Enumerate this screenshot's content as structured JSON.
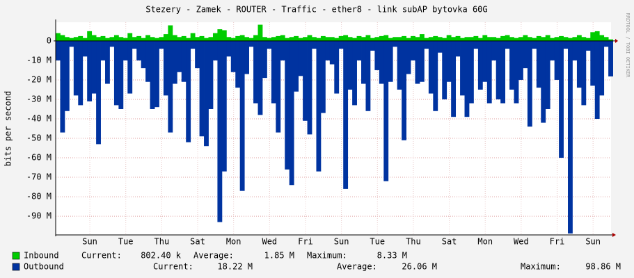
{
  "chart_data": {
    "type": "area-bars",
    "title": "Stezery - Zamek - ROUTER - Traffic - ether8 - link subAP bytovka 60G",
    "y_label": "bits per second",
    "side_text": "RRDTOOL / TOBI OETIKER",
    "xlim": [
      0,
      30.9
    ],
    "ylim": [
      -99.6,
      9.6
    ],
    "grid": true,
    "xticks": [
      {
        "value": 1.9,
        "label": "Sun"
      },
      {
        "value": 3.9,
        "label": "Tue"
      },
      {
        "value": 5.9,
        "label": "Thu"
      },
      {
        "value": 7.9,
        "label": "Sat"
      },
      {
        "value": 9.9,
        "label": "Mon"
      },
      {
        "value": 11.9,
        "label": "Wed"
      },
      {
        "value": 13.9,
        "label": "Fri"
      },
      {
        "value": 15.9,
        "label": "Sun"
      },
      {
        "value": 17.9,
        "label": "Tue"
      },
      {
        "value": 19.9,
        "label": "Thu"
      },
      {
        "value": 21.9,
        "label": "Sat"
      },
      {
        "value": 23.9,
        "label": "Mon"
      },
      {
        "value": 25.9,
        "label": "Wed"
      },
      {
        "value": 27.9,
        "label": "Fri"
      },
      {
        "value": 29.9,
        "label": "Sun"
      }
    ],
    "yticks": [
      0,
      {
        "value": -10,
        "label": "-10 M"
      },
      {
        "value": -20,
        "label": "-20 M"
      },
      {
        "value": -30,
        "label": "-30 M"
      },
      {
        "value": -40,
        "label": "-40 M"
      },
      {
        "value": -50,
        "label": "-50 M"
      },
      {
        "value": -60,
        "label": "-60 M"
      },
      {
        "value": -70,
        "label": "-70 M"
      },
      {
        "value": -80,
        "label": "-80 M"
      },
      {
        "value": -90,
        "label": "-90 M"
      }
    ],
    "x": [
      0,
      0.25,
      0.5,
      0.75,
      1,
      1.25,
      1.5,
      1.75,
      2,
      2.25,
      2.5,
      2.75,
      3,
      3.25,
      3.5,
      3.75,
      4,
      4.25,
      4.5,
      4.75,
      5,
      5.25,
      5.5,
      5.75,
      6,
      6.25,
      6.5,
      6.75,
      7,
      7.25,
      7.5,
      7.75,
      8,
      8.25,
      8.5,
      8.75,
      9,
      9.25,
      9.5,
      9.75,
      10,
      10.25,
      10.5,
      10.75,
      11,
      11.25,
      11.5,
      11.75,
      12,
      12.25,
      12.5,
      12.75,
      13,
      13.25,
      13.5,
      13.75,
      14,
      14.25,
      14.5,
      14.75,
      15,
      15.25,
      15.5,
      15.75,
      16,
      16.25,
      16.5,
      16.75,
      17,
      17.25,
      17.5,
      17.75,
      18,
      18.25,
      18.5,
      18.75,
      19,
      19.25,
      19.5,
      19.75,
      20,
      20.25,
      20.5,
      20.75,
      21,
      21.25,
      21.5,
      21.75,
      22,
      22.25,
      22.5,
      22.75,
      23,
      23.25,
      23.5,
      23.75,
      24,
      24.25,
      24.5,
      24.75,
      25,
      25.25,
      25.5,
      25.75,
      26,
      26.25,
      26.5,
      26.75,
      27,
      27.25,
      27.5,
      27.75,
      28,
      28.25,
      28.5,
      28.75,
      29,
      29.25,
      29.5,
      29.75,
      30,
      30.25,
      30.5,
      30.75
    ],
    "series": [
      {
        "name": "Inbound",
        "color": "#00cc00",
        "line_color": "#006600",
        "stats": [
          {
            "label": "Current:",
            "value": "802.40 k"
          },
          {
            "label": "Average:",
            "value": "1.85 M"
          },
          {
            "label": "Maximum:",
            "value": "8.33 M"
          }
        ],
        "values": [
          4,
          3,
          2,
          1.5,
          2,
          2.5,
          1.5,
          5,
          3,
          2,
          2.5,
          1.5,
          2,
          3,
          2,
          1.5,
          4,
          2,
          2.5,
          1.5,
          3,
          2,
          1.5,
          2,
          3.5,
          8,
          3,
          2,
          2.5,
          1.5,
          4,
          2,
          2.5,
          1.5,
          2,
          4,
          6,
          5.5,
          2,
          1.5,
          2.5,
          3,
          2,
          1.5,
          3,
          8.33,
          2,
          1.5,
          2,
          2.5,
          3,
          1.5,
          2,
          2.5,
          1.5,
          2,
          3,
          2,
          1.5,
          2.5,
          2,
          2,
          1.5,
          2.5,
          3,
          2,
          1.5,
          2.5,
          2,
          3,
          1.5,
          2,
          2.5,
          3,
          1.5,
          2,
          2,
          2.5,
          1.5,
          2.5,
          2,
          3.5,
          1.5,
          2,
          2.5,
          2,
          1.5,
          3,
          2,
          2.5,
          1.5,
          2,
          2,
          2.5,
          1.5,
          3,
          2,
          2,
          1.5,
          2.5,
          3,
          2,
          1.5,
          2,
          3,
          2,
          1.5,
          2.5,
          2,
          3,
          1.5,
          2,
          2.5,
          2,
          1.5,
          2,
          3,
          2,
          1.5,
          4.5,
          5,
          3,
          2,
          0.8
        ]
      },
      {
        "name": "Outbound",
        "color": "#0033a0",
        "line_color": "#0022cc",
        "stats": [
          {
            "label": "Current:",
            "value": "18.22 M"
          },
          {
            "label": "Average:",
            "value": "26.06 M"
          },
          {
            "label": "Maximum:",
            "value": "98.86 M"
          }
        ],
        "values": [
          -10,
          -47,
          -36,
          -3,
          -28,
          -33,
          -8,
          -31,
          -27,
          -53,
          -10,
          -22,
          -3,
          -33,
          -35,
          -10,
          -27,
          -4,
          -10,
          -14,
          -21,
          -35,
          -34,
          -4,
          -28,
          -47,
          -22,
          -16,
          -21,
          -52,
          -4,
          -14,
          -49,
          -54,
          -35,
          -10,
          -93,
          -67,
          -8,
          -16,
          -24,
          -77,
          -17,
          -3,
          -32,
          -38,
          -19,
          -4,
          -32,
          -47,
          -10,
          -66,
          -74,
          -26,
          -18,
          -41,
          -48,
          -4,
          -67,
          -37,
          -10,
          -12,
          -27,
          -4,
          -76,
          -25,
          -33,
          -10,
          -22,
          -36,
          -5,
          -15,
          -22,
          -72,
          -21,
          -3,
          -25,
          -51,
          -17,
          -10,
          -22,
          -21,
          -4,
          -27,
          -36,
          -6,
          -30,
          -21,
          -39,
          -8,
          -28,
          -39,
          -32,
          -4,
          -25,
          -21,
          -32,
          -10,
          -30,
          -32,
          -4,
          -25,
          -32,
          -20,
          -14,
          -44,
          -4,
          -24,
          -42,
          -35,
          -10,
          -20,
          -60,
          -4,
          -98.86,
          -10,
          -24,
          -33,
          -5,
          -23,
          -40,
          -28,
          -3,
          -18.22
        ]
      }
    ]
  }
}
